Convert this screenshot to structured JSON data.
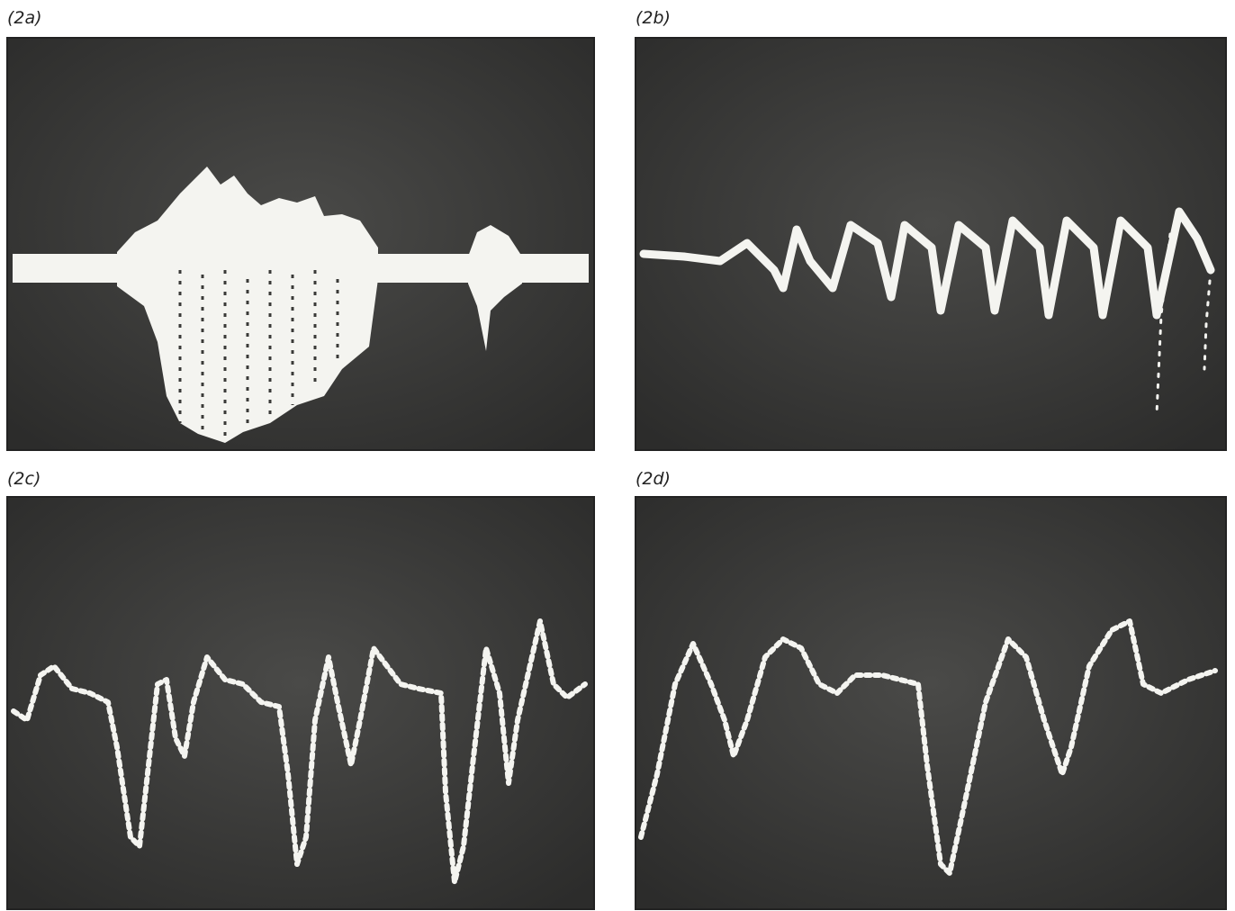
{
  "panels": [
    {
      "label": "(2a)"
    },
    {
      "label": "(2b)"
    },
    {
      "label": "(2c)"
    },
    {
      "label": "(2d)"
    }
  ]
}
